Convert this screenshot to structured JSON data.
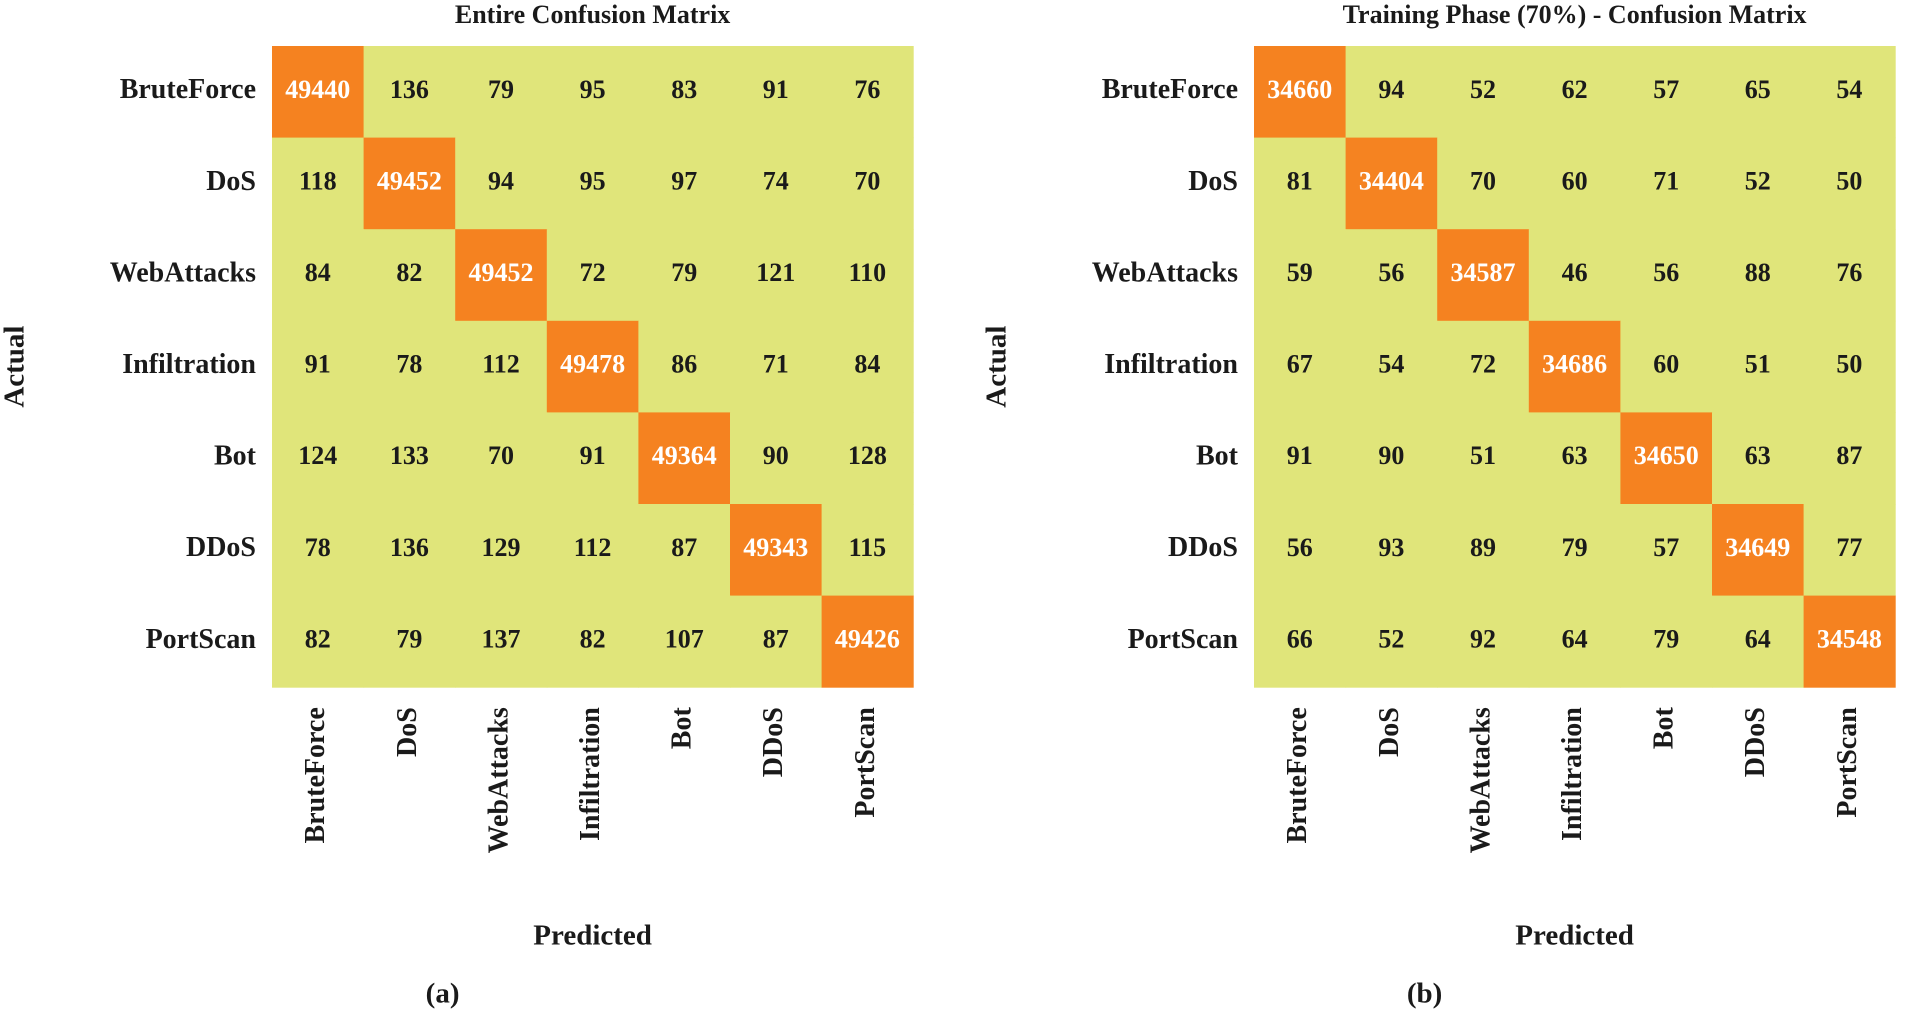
{
  "chart_data": [
    {
      "type": "heatmap",
      "title": "Entire Confusion Matrix",
      "xlabel": "Predicted",
      "ylabel": "Actual",
      "caption": "(a)",
      "x": [
        "BruteForce",
        "DoS",
        "WebAttacks",
        "Infiltration",
        "Bot",
        "DDoS",
        "PortScan"
      ],
      "y": [
        "BruteForce",
        "DoS",
        "WebAttacks",
        "Infiltration",
        "Bot",
        "DDoS",
        "PortScan"
      ],
      "colors": [
        "#e0e57a",
        "#f58220"
      ],
      "values": [
        [
          49440,
          136,
          79,
          95,
          83,
          91,
          76
        ],
        [
          118,
          49452,
          94,
          95,
          97,
          74,
          70
        ],
        [
          84,
          82,
          49452,
          72,
          79,
          121,
          110
        ],
        [
          91,
          78,
          112,
          49478,
          86,
          71,
          84
        ],
        [
          124,
          133,
          70,
          91,
          49364,
          90,
          128
        ],
        [
          78,
          136,
          129,
          112,
          87,
          49343,
          115
        ],
        [
          82,
          79,
          137,
          82,
          107,
          87,
          49426
        ]
      ]
    },
    {
      "type": "heatmap",
      "title": "Training Phase (70%) - Confusion Matrix",
      "xlabel": "Predicted",
      "ylabel": "Actual",
      "caption": "(b)",
      "x": [
        "BruteForce",
        "DoS",
        "WebAttacks",
        "Infiltration",
        "Bot",
        "DDoS",
        "PortScan"
      ],
      "y": [
        "BruteForce",
        "DoS",
        "WebAttacks",
        "Infiltration",
        "Bot",
        "DDoS",
        "PortScan"
      ],
      "colors": [
        "#e0e57a",
        "#f58220"
      ],
      "values": [
        [
          34660,
          94,
          52,
          62,
          57,
          65,
          54
        ],
        [
          81,
          34404,
          70,
          60,
          71,
          52,
          50
        ],
        [
          59,
          56,
          34587,
          46,
          56,
          88,
          76
        ],
        [
          67,
          54,
          72,
          34686,
          60,
          51,
          50
        ],
        [
          91,
          90,
          51,
          63,
          34650,
          63,
          87
        ],
        [
          56,
          93,
          89,
          79,
          57,
          34649,
          77
        ],
        [
          66,
          52,
          92,
          64,
          79,
          64,
          34548
        ]
      ]
    }
  ]
}
